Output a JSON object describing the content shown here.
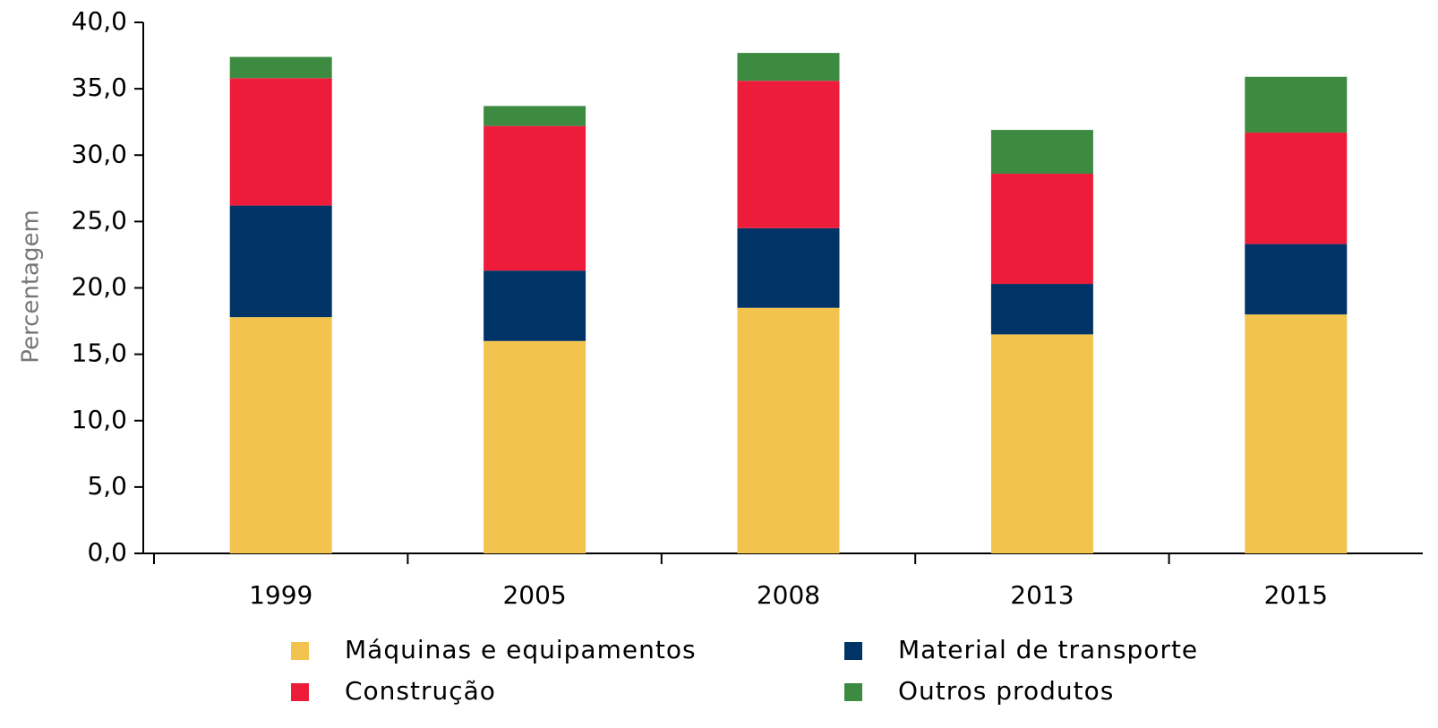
{
  "chart_data": {
    "type": "stacked_bar",
    "y_axis_label": "Percentagem",
    "categories": [
      "1999",
      "2005",
      "2008",
      "2013",
      "2015"
    ],
    "series": [
      {
        "name": "Máquinas e equipamentos",
        "color": "#f2c44f",
        "values": [
          17.8,
          16.0,
          18.5,
          16.5,
          18.0
        ]
      },
      {
        "name": "Material de transporte",
        "color": "#003366",
        "values": [
          8.4,
          5.3,
          6.0,
          3.8,
          5.3
        ]
      },
      {
        "name": "Construção",
        "color": "#ee1c3b",
        "values": [
          9.6,
          10.9,
          11.1,
          8.3,
          8.4
        ]
      },
      {
        "name": "Outros produtos",
        "color": "#3d8b40",
        "values": [
          1.6,
          1.5,
          2.1,
          3.3,
          4.2
        ]
      }
    ],
    "ylim": [
      0,
      40
    ],
    "yticks": [
      {
        "value": 0,
        "label": "0,0"
      },
      {
        "value": 5,
        "label": "5,0"
      },
      {
        "value": 10,
        "label": "10,0"
      },
      {
        "value": 15,
        "label": "15,0"
      },
      {
        "value": 20,
        "label": "20,0"
      },
      {
        "value": 25,
        "label": "25,0"
      },
      {
        "value": 30,
        "label": "30,0"
      },
      {
        "value": 35,
        "label": "35,0"
      },
      {
        "value": 40,
        "label": "40,0"
      }
    ],
    "grid": false
  }
}
